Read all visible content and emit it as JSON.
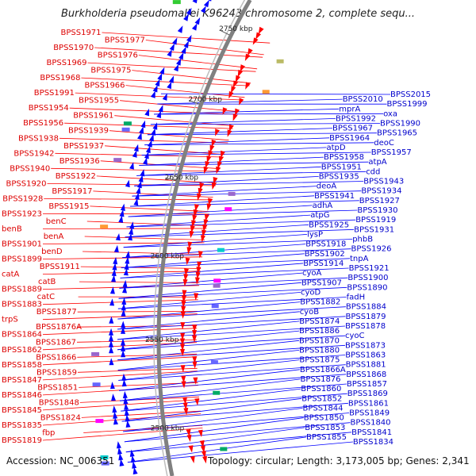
{
  "title": "Burkholderia pseudomallei K96243 chromosome 2, complete sequ...",
  "footer": {
    "accession": "Accession: NC_006351",
    "topology": "Topology: circular; Length: 3,173,005 bp; Genes: 2,341"
  },
  "colors": {
    "forward": "#ff0000",
    "reverse": "#0000ff",
    "backbone": "#808080"
  },
  "ticks": [
    "2750 kbp",
    "2700 kbp",
    "2650 kbp",
    "2600 kbp",
    "2550 kbp",
    "2500 kbp"
  ],
  "left_labels": [
    "BPSS1971",
    "BPSS1977",
    "BPSS1970",
    "BPSS1976",
    "BPSS1969",
    "BPSS1975",
    "BPSS1968",
    "BPSS1966",
    "BPSS1991",
    "BPSS1955",
    "BPSS1954",
    "BPSS1961",
    "BPSS1956",
    "BPSS1939",
    "BPSS1938",
    "BPSS1937",
    "BPSS1942",
    "BPSS1936",
    "BPSS1940",
    "BPSS1922",
    "BPSS1920",
    "BPSS1917",
    "BPSS1928",
    "BPSS1915",
    "BPSS1923",
    "benC",
    "benB",
    "benA",
    "BPSS1901",
    "benD",
    "BPSS1899",
    "BPSS1911",
    "catA",
    "catB",
    "BPSS1889",
    "catC",
    "BPSS1883",
    "BPSS1877",
    "trpS",
    "BPSS1876A",
    "BPSS1864",
    "BPSS1867",
    "BPSS1862",
    "BPSS1866",
    "BPSS1858",
    "BPSS1859",
    "BPSS1847",
    "BPSS1851",
    "BPSS1846",
    "BPSS1848",
    "BPSS1845",
    "BPSS1824",
    "BPSS1835",
    "fbp",
    "BPSS1819"
  ],
  "right_labels": [
    "BPSS2015",
    "BPSS2010",
    "BPSS1999",
    "mprA",
    "oxa",
    "BPSS1992",
    "BPSS1990",
    "BPSS1967",
    "BPSS1965",
    "BPSS1964",
    "deoC",
    "atpD",
    "BPSS1957",
    "BPSS1958",
    "atpA",
    "BPSS1951",
    "cdd",
    "BPSS1935",
    "BPSS1943",
    "deoA",
    "BPSS1934",
    "BPSS1941",
    "BPSS1927",
    "adhA",
    "BPSS1930",
    "atpG",
    "BPSS1919",
    "BPSS1925",
    "BPSS1931",
    "lysP",
    "phbB",
    "BPSS1918",
    "BPSS1926",
    "BPSS1902",
    "tnpA",
    "BPSS1914",
    "BPSS1921",
    "cyoA",
    "BPSS1900",
    "BPSS1907",
    "BPSS1890",
    "cyoD",
    "fadH",
    "BPSS1882",
    "BPSS1884",
    "cyoB",
    "BPSS1879",
    "BPSS1874",
    "BPSS1878",
    "BPSS1886",
    "cyoC",
    "BPSS1870",
    "BPSS1873",
    "BPSS1880",
    "BPSS1863",
    "BPSS1875",
    "BPSS1881",
    "BPSS1866A",
    "BPSS1868",
    "BPSS1876",
    "BPSS1857",
    "BPSS1860",
    "BPSS1869",
    "BPSS1852",
    "BPSS1861",
    "BPSS1844",
    "BPSS1849",
    "BPSS1850",
    "BPSS1840",
    "BPSS1853",
    "BPSS1841",
    "BPSS1855",
    "BPSS1834"
  ]
}
